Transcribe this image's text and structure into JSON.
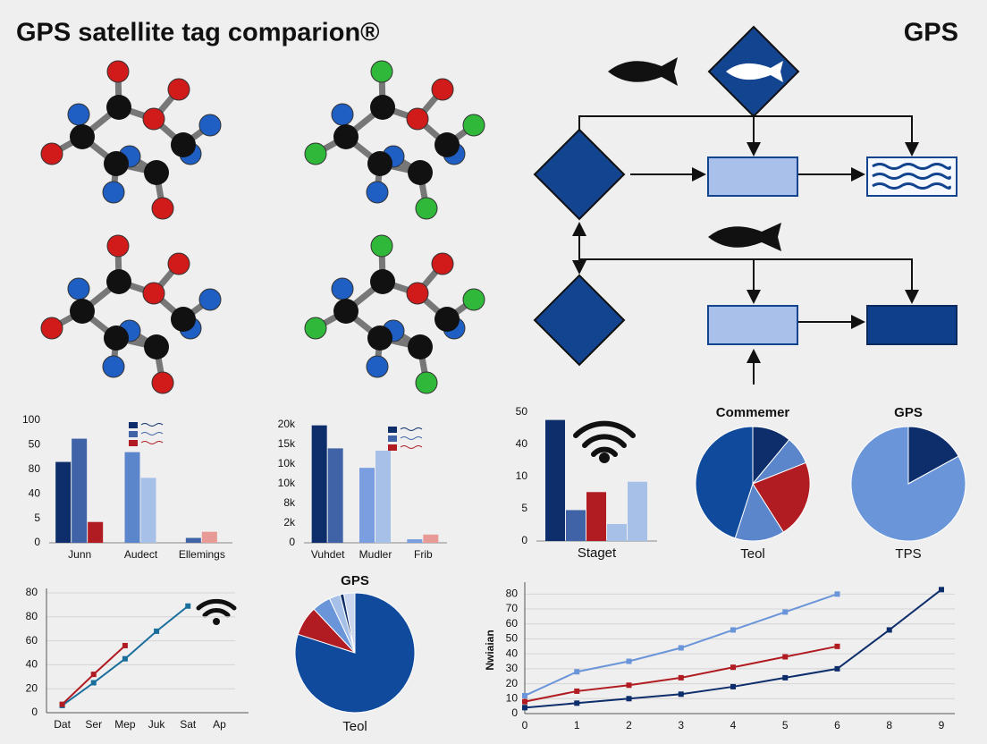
{
  "header": {
    "title": "GPS satellite tag comparion®",
    "corner": "GPS"
  },
  "chart_data": [
    {
      "type": "bar",
      "categories": [
        "Junn",
        "Audect",
        "Ellemings"
      ],
      "y_labels": [
        "0",
        "5",
        "40",
        "80",
        "50",
        "100"
      ],
      "ylim": [
        0,
        100
      ],
      "series": [
        {
          "color": "#0d2d6b",
          "values": [
            66,
            null,
            null
          ]
        },
        {
          "color": "#3f63a6",
          "values": [
            85,
            null,
            4
          ]
        },
        {
          "color": "#b01c22",
          "values": [
            17,
            null,
            null
          ]
        },
        {
          "color": "#5b86cc",
          "values": [
            null,
            74,
            null
          ]
        },
        {
          "color": "#a7c0e8",
          "values": [
            null,
            53,
            null
          ]
        },
        {
          "color": "#e89a97",
          "values": [
            null,
            null,
            9
          ]
        }
      ]
    },
    {
      "type": "bar",
      "categories": [
        "Vuhdet",
        "Mudler",
        "Frib"
      ],
      "y_labels": [
        "0",
        "2k",
        "8k",
        "10k",
        "10k",
        "15k",
        "20k"
      ],
      "ylim": [
        0,
        20000
      ],
      "series": [
        {
          "color": "#0d2d6b",
          "values": [
            19900,
            null,
            null
          ]
        },
        {
          "color": "#3f63a6",
          "values": [
            16000,
            null,
            null
          ]
        },
        {
          "color": "#b01c22",
          "values": [
            null,
            null,
            null
          ]
        },
        {
          "color": "#7a9ee0",
          "values": [
            null,
            12700,
            600
          ]
        },
        {
          "color": "#a7c0e8",
          "values": [
            null,
            15600,
            null
          ]
        },
        {
          "color": "#e89a97",
          "values": [
            null,
            null,
            1400
          ]
        }
      ]
    },
    {
      "type": "bar",
      "categories": [
        "Staget"
      ],
      "y_labels": [
        "0",
        "5",
        "10",
        "40",
        "50"
      ],
      "ylim": [
        0,
        50
      ],
      "series": [
        {
          "color": "#0d2d6b",
          "values": [
            47
          ]
        },
        {
          "color": "#3f63a6",
          "values": [
            12
          ]
        },
        {
          "color": "#b01c22",
          "values": [
            19
          ]
        },
        {
          "color": "#a7c0e8",
          "values": [
            6.6
          ]
        },
        {
          "color": "#a7c0e8",
          "values": [
            23
          ]
        }
      ]
    },
    {
      "type": "pie",
      "title": "Commemer",
      "label": "Teol",
      "values": [
        11,
        8,
        22,
        14,
        45
      ],
      "colors": [
        "#0d2d6b",
        "#5b86cc",
        "#b01c22",
        "#5b86cc",
        "#0f4a9c"
      ]
    },
    {
      "type": "pie",
      "title": "GPS",
      "label": "TPS",
      "values": [
        17,
        83
      ],
      "colors": [
        "#0d2d6b",
        "#6a95d8"
      ]
    },
    {
      "type": "line",
      "categories": [
        "Dat",
        "Ser",
        "Mep",
        "Juk",
        "Sat",
        "Ap"
      ],
      "y_labels": [
        "0",
        "20",
        "40",
        "60",
        "80",
        "80"
      ],
      "ylim": [
        0,
        100
      ],
      "grid": true,
      "series": [
        {
          "color": "#1a6e9c",
          "values": [
            6,
            25,
            45,
            68,
            89,
            null
          ]
        },
        {
          "color": "#b01c22",
          "values": [
            7,
            32,
            56,
            null,
            null,
            null
          ]
        }
      ]
    },
    {
      "type": "pie",
      "title": "GPS",
      "label": "Teol",
      "values": [
        80,
        8,
        5,
        3,
        1,
        3
      ],
      "colors": [
        "#0f4a9c",
        "#b01c22",
        "#6a95d8",
        "#a7c0e8",
        "#0d2d6b",
        "#c9d6ee"
      ]
    },
    {
      "type": "line",
      "categories": [
        "0",
        "1",
        "2",
        "3",
        "4",
        "5",
        "6",
        "8",
        "9"
      ],
      "ylabel": "Nwiaian",
      "ylim": [
        0,
        85
      ],
      "yticks": [
        0,
        10,
        20,
        30,
        40,
        50,
        60,
        70,
        80
      ],
      "grid": true,
      "series": [
        {
          "color": "#6a95d8",
          "values": [
            12,
            28,
            35,
            44,
            56,
            68,
            80,
            null,
            null
          ]
        },
        {
          "color": "#b01c22",
          "values": [
            8,
            15,
            19,
            24,
            31,
            38,
            45,
            null,
            null
          ]
        },
        {
          "color": "#0d2d6b",
          "values": [
            4,
            7,
            10,
            13,
            18,
            24,
            30,
            56,
            83
          ]
        }
      ]
    }
  ]
}
